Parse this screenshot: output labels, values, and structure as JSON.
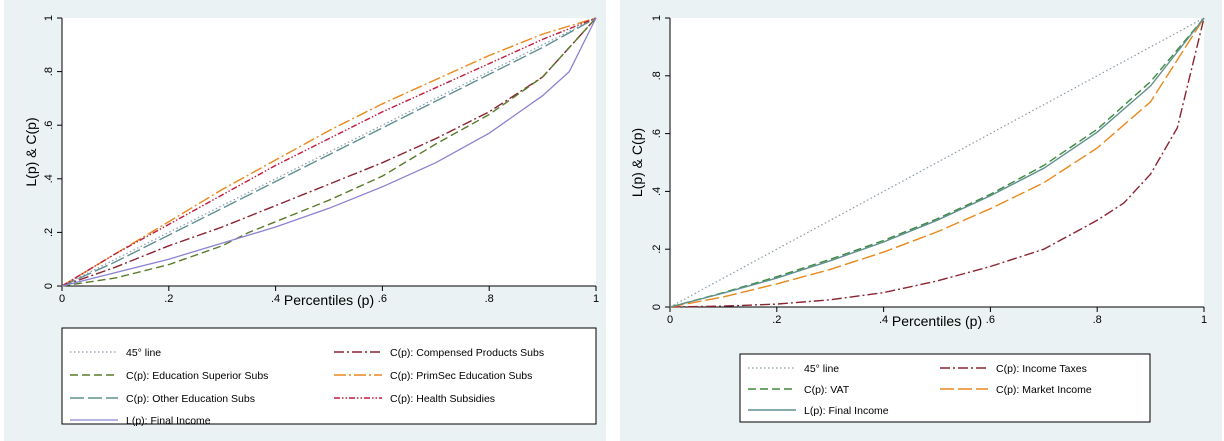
{
  "chart_data": [
    {
      "type": "line",
      "xlabel": "Percentiles (p)",
      "ylabel": "L(p) & C(p)",
      "xlim": [
        0,
        1
      ],
      "ylim": [
        0,
        1
      ],
      "xticks": [
        "0",
        ".2",
        ".4",
        ".6",
        ".8",
        "1"
      ],
      "yticks": [
        "0",
        ".2",
        ".4",
        ".6",
        ".8",
        "1"
      ],
      "grid": false,
      "legend_position": "bottom",
      "series": [
        {
          "name": "45° line",
          "color": "#8a9aa6",
          "dash": "1.5,2.5",
          "width": 1.2,
          "x": [
            0,
            1
          ],
          "y": [
            0,
            1
          ]
        },
        {
          "name": "C(p): Compensed Products Subs",
          "color": "#8b2331",
          "dash": "10,3,2,3",
          "width": 1.4,
          "x": [
            0,
            0.1,
            0.2,
            0.3,
            0.4,
            0.5,
            0.6,
            0.7,
            0.8,
            0.9,
            1
          ],
          "y": [
            0,
            0.07,
            0.15,
            0.22,
            0.3,
            0.38,
            0.46,
            0.55,
            0.65,
            0.78,
            1
          ]
        },
        {
          "name": "C(p): Education Superior Subs",
          "color": "#5a7a2a",
          "dash": "8,4",
          "width": 1.4,
          "x": [
            0,
            0.1,
            0.2,
            0.3,
            0.35,
            0.4,
            0.5,
            0.6,
            0.7,
            0.8,
            0.9,
            1
          ],
          "y": [
            0,
            0.03,
            0.08,
            0.15,
            0.2,
            0.24,
            0.32,
            0.41,
            0.53,
            0.64,
            0.78,
            1
          ]
        },
        {
          "name": "C(p): PrimSec Education Subs",
          "color": "#e8891c",
          "dash": "12,3,2,3",
          "width": 1.4,
          "x": [
            0,
            0.1,
            0.2,
            0.3,
            0.4,
            0.5,
            0.6,
            0.7,
            0.8,
            0.9,
            1
          ],
          "y": [
            0,
            0.12,
            0.24,
            0.36,
            0.47,
            0.58,
            0.68,
            0.77,
            0.86,
            0.94,
            1
          ]
        },
        {
          "name": "C(p): Other Education Subs",
          "color": "#5f8f8f",
          "dash": "14,4",
          "width": 1.4,
          "x": [
            0,
            0.1,
            0.2,
            0.3,
            0.4,
            0.5,
            0.6,
            0.7,
            0.8,
            0.9,
            1
          ],
          "y": [
            0,
            0.09,
            0.19,
            0.29,
            0.39,
            0.49,
            0.59,
            0.69,
            0.79,
            0.89,
            1
          ]
        },
        {
          "name": "C(p): Health Subsidies",
          "color": "#c21a3c",
          "dash": "6,2,1.5,2,1.5,2",
          "width": 1.4,
          "x": [
            0,
            0.1,
            0.2,
            0.3,
            0.4,
            0.5,
            0.6,
            0.7,
            0.8,
            0.9,
            1
          ],
          "y": [
            0,
            0.12,
            0.23,
            0.34,
            0.45,
            0.55,
            0.65,
            0.74,
            0.83,
            0.92,
            1
          ]
        },
        {
          "name": "L(p): Final Income",
          "color": "#8b82d2",
          "dash": "",
          "width": 1.3,
          "x": [
            0,
            0.1,
            0.2,
            0.3,
            0.4,
            0.5,
            0.6,
            0.7,
            0.8,
            0.9,
            0.95,
            1
          ],
          "y": [
            0,
            0.05,
            0.1,
            0.16,
            0.22,
            0.29,
            0.37,
            0.46,
            0.57,
            0.71,
            0.8,
            1
          ]
        }
      ]
    },
    {
      "type": "line",
      "xlabel": "Percentiles (p)",
      "ylabel": "L(p) & C(p)",
      "xlim": [
        0,
        1
      ],
      "ylim": [
        0,
        1
      ],
      "xticks": [
        "0",
        ".2",
        ".4",
        ".6",
        ".8",
        "1"
      ],
      "yticks": [
        "0",
        ".2",
        ".4",
        ".6",
        ".8",
        "1"
      ],
      "grid": false,
      "legend_position": "bottom",
      "series": [
        {
          "name": "45° line",
          "color": "#8a9aa6",
          "dash": "1.5,2.5",
          "width": 1.2,
          "x": [
            0,
            1
          ],
          "y": [
            0,
            1
          ]
        },
        {
          "name": "C(p): Income Taxes",
          "color": "#8b2331",
          "dash": "10,3,2,3",
          "width": 1.4,
          "x": [
            0,
            0.1,
            0.2,
            0.3,
            0.4,
            0.5,
            0.6,
            0.7,
            0.8,
            0.85,
            0.9,
            0.95,
            1
          ],
          "y": [
            0,
            0.003,
            0.01,
            0.025,
            0.05,
            0.09,
            0.14,
            0.2,
            0.3,
            0.36,
            0.46,
            0.62,
            1
          ]
        },
        {
          "name": "C(p): VAT",
          "color": "#3f8a3f",
          "dash": "8,4",
          "width": 1.4,
          "x": [
            0,
            0.1,
            0.2,
            0.3,
            0.4,
            0.5,
            0.6,
            0.7,
            0.8,
            0.9,
            1
          ],
          "y": [
            0,
            0.05,
            0.105,
            0.165,
            0.23,
            0.305,
            0.39,
            0.49,
            0.615,
            0.78,
            1
          ]
        },
        {
          "name": "C(p): Market Income",
          "color": "#e8891c",
          "dash": "14,4",
          "width": 1.4,
          "x": [
            0,
            0.1,
            0.2,
            0.3,
            0.4,
            0.5,
            0.6,
            0.7,
            0.8,
            0.9,
            1
          ],
          "y": [
            0,
            0.035,
            0.08,
            0.13,
            0.19,
            0.26,
            0.34,
            0.43,
            0.55,
            0.71,
            1
          ]
        },
        {
          "name": "L(p): Final Income",
          "color": "#5f8f8f",
          "dash": "",
          "width": 1.4,
          "x": [
            0,
            0.1,
            0.2,
            0.3,
            0.4,
            0.5,
            0.6,
            0.7,
            0.8,
            0.9,
            1
          ],
          "y": [
            0,
            0.048,
            0.1,
            0.16,
            0.225,
            0.3,
            0.385,
            0.48,
            0.605,
            0.765,
            1
          ]
        }
      ]
    }
  ]
}
